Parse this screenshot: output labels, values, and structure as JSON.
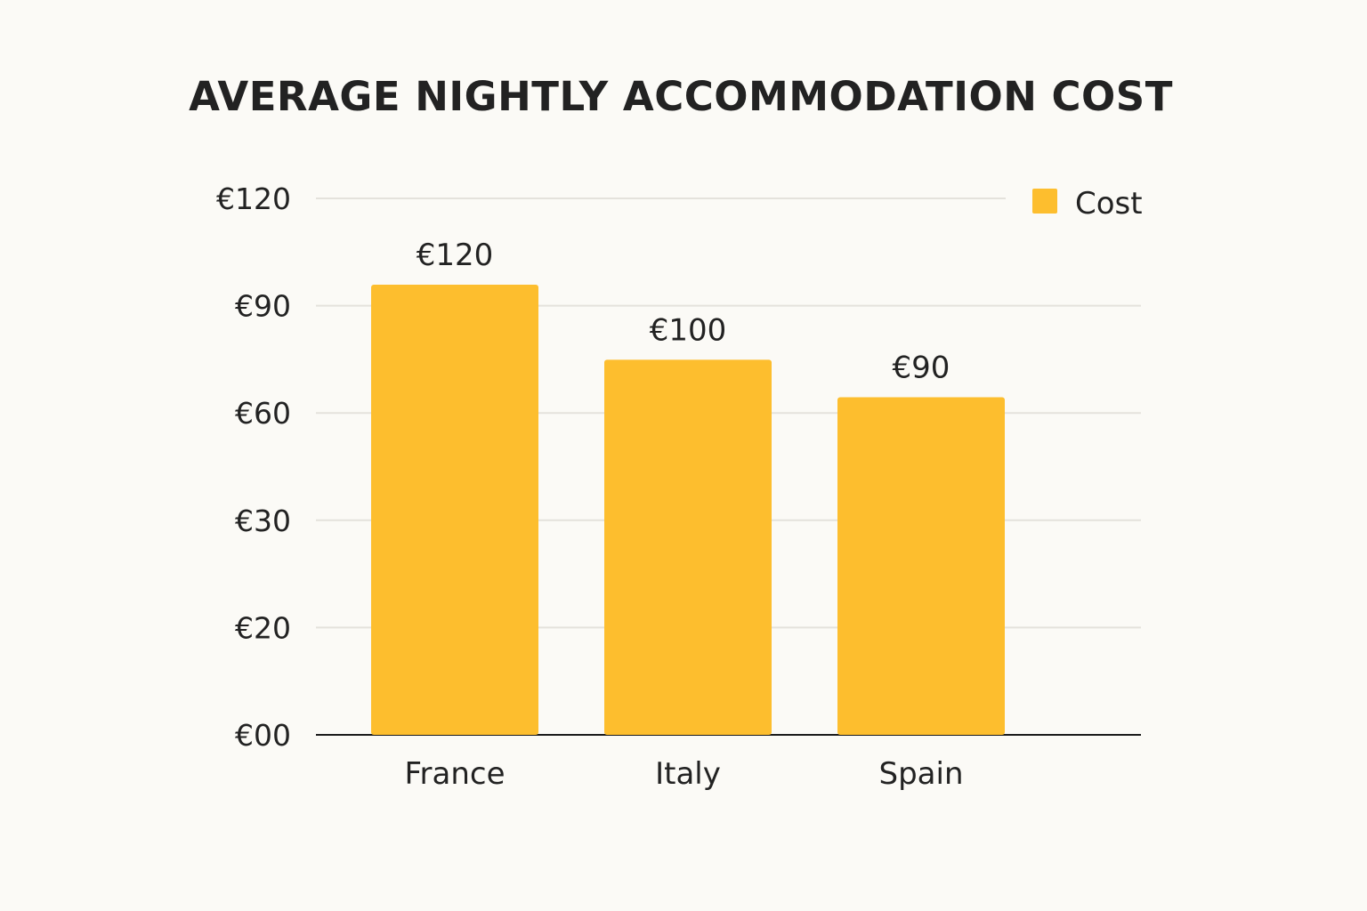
{
  "chart_data": {
    "type": "bar",
    "title": "AVERAGE NIGHTLY ACCOMMODATION COST",
    "xlabel": "",
    "ylabel": "",
    "categories": [
      "France",
      "Italy",
      "Spain"
    ],
    "series": [
      {
        "name": "Cost",
        "values": [
          120,
          100,
          90
        ],
        "color": "#fdbe2e"
      }
    ],
    "data_labels": [
      "€120",
      "€100",
      "€90"
    ],
    "y_tick_labels": [
      "€00",
      "€20",
      "€30",
      "€60",
      "€90",
      "€120"
    ],
    "grid": true,
    "legend": "top-right"
  }
}
